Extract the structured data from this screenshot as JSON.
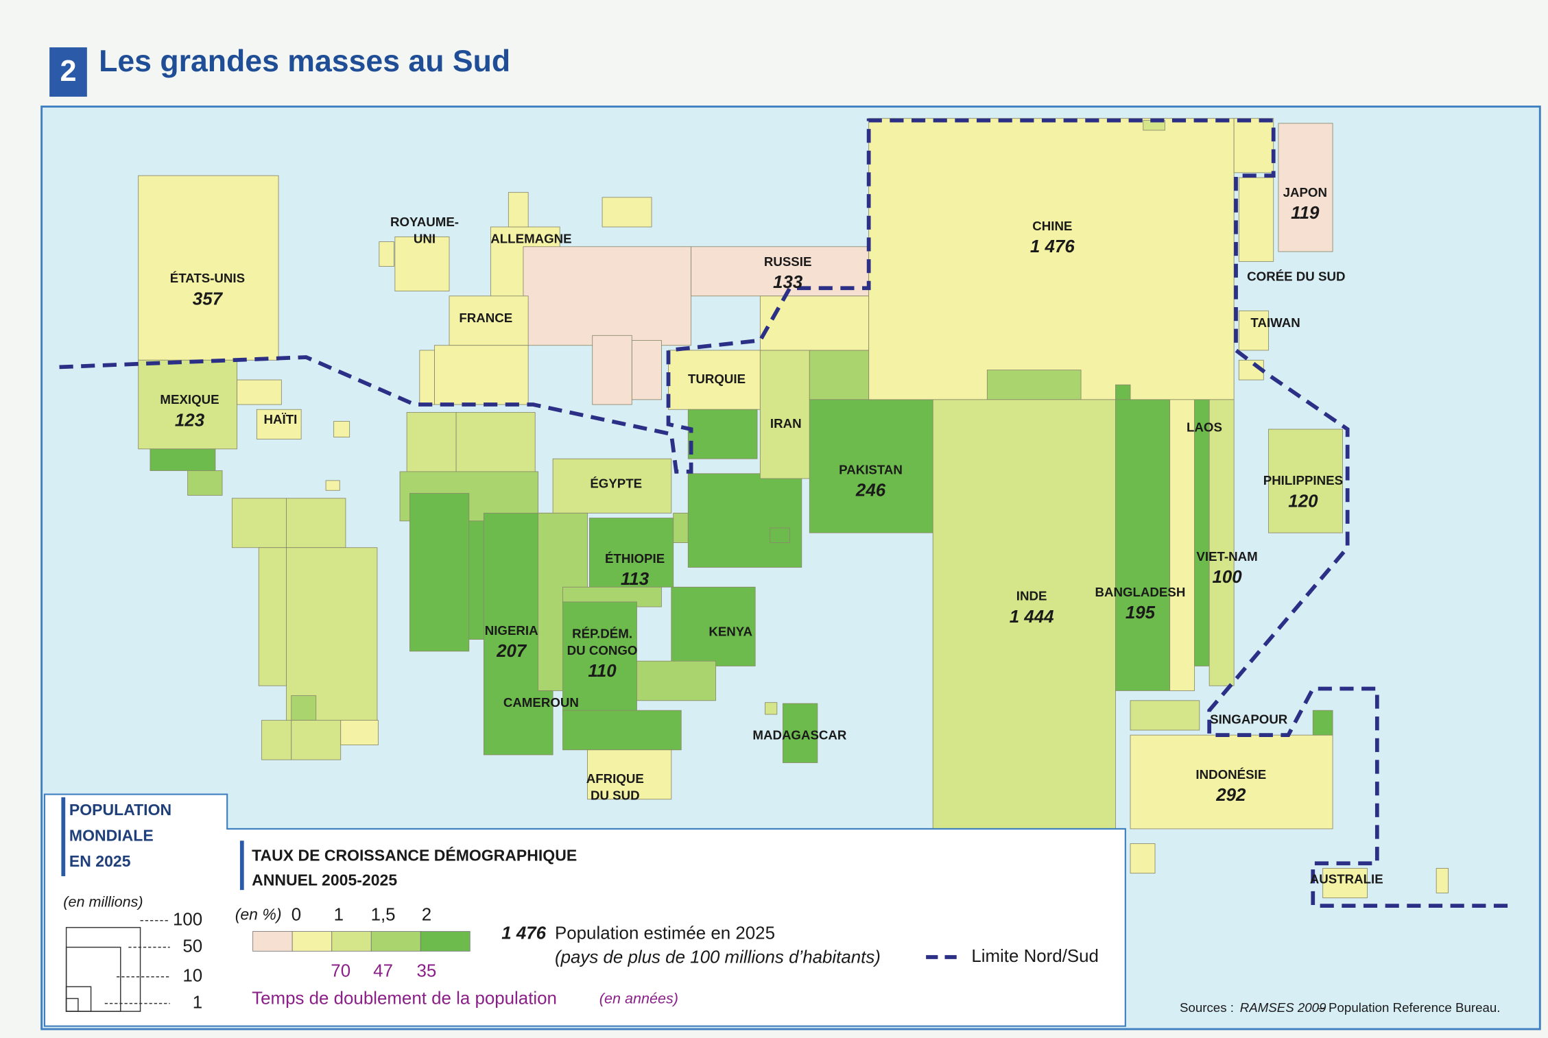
{
  "header": {
    "number": "2",
    "title": "Les grandes masses au Sud"
  },
  "countries": [
    {
      "name": [
        "ÉTATS-UNIS"
      ],
      "population": "357"
    },
    {
      "name": [
        "ROYAUME-",
        "UNI"
      ]
    },
    {
      "name": [
        "ALLEMAGNE"
      ]
    },
    {
      "name": [
        "FRANCE"
      ]
    },
    {
      "name": [
        "RUSSIE"
      ],
      "population": "133"
    },
    {
      "name": [
        "CHINE"
      ],
      "population": "1 476"
    },
    {
      "name": [
        "JAPON"
      ],
      "population": "119"
    },
    {
      "name": [
        "CORÉE DU SUD"
      ]
    },
    {
      "name": [
        "TAIWAN"
      ]
    },
    {
      "name": [
        "MEXIQUE"
      ],
      "population": "123"
    },
    {
      "name": [
        "HAÏTI"
      ]
    },
    {
      "name": [
        "TURQUIE"
      ]
    },
    {
      "name": [
        "IRAN"
      ]
    },
    {
      "name": [
        "PAKISTAN"
      ],
      "population": "246"
    },
    {
      "name": [
        "ÉGYPTE"
      ]
    },
    {
      "name": [
        "ÉTHIOPIE"
      ],
      "population": "113"
    },
    {
      "name": [
        "NIGERIA"
      ],
      "population": "207"
    },
    {
      "name": [
        "RÉP.DÉM.",
        "DU CONGO"
      ],
      "population": "110"
    },
    {
      "name": [
        "KENYA"
      ]
    },
    {
      "name": [
        "CAMEROUN"
      ]
    },
    {
      "name": [
        "MADAGASCAR"
      ]
    },
    {
      "name": [
        "AFRIQUE",
        "DU SUD"
      ]
    },
    {
      "name": [
        "INDE"
      ],
      "population": "1 444"
    },
    {
      "name": [
        "BANGLADESH"
      ],
      "population": "195"
    },
    {
      "name": [
        "LAOS"
      ]
    },
    {
      "name": [
        "VIET-NAM"
      ],
      "population": "100"
    },
    {
      "name": [
        "PHILIPPINES"
      ],
      "population": "120"
    },
    {
      "name": [
        "SINGAPOUR"
      ]
    },
    {
      "name": [
        "INDONÉSIE"
      ],
      "population": "292"
    },
    {
      "name": [
        "AUSTRALIE"
      ]
    }
  ],
  "legend_population": {
    "title": [
      "POPULATION",
      "MONDIALE",
      "EN 2025"
    ],
    "unit": "(en millions)",
    "scale": [
      "100",
      "50",
      "10",
      "1"
    ]
  },
  "legend_growth": {
    "title": [
      "TAUX DE CROISSANCE DÉMOGRAPHIQUE",
      "ANNUEL 2005-2025"
    ],
    "unit": "(en %)",
    "thresholds": [
      "0",
      "1",
      "1,5",
      "2"
    ],
    "doubling": [
      "70",
      "47",
      "35"
    ],
    "doubling_label": "Temps de doublement de la population",
    "doubling_unit": "(en années)"
  },
  "legend_example": {
    "value": "1 476",
    "text": "Population estimée en 2025",
    "note": "(pays de plus de 100 millions d’habitants)"
  },
  "legend_line": "Limite Nord/Sud",
  "source": {
    "prefix": "Sources :",
    "ref": "RAMSES 2009",
    "rest": "– Population Reference Bureau."
  }
}
